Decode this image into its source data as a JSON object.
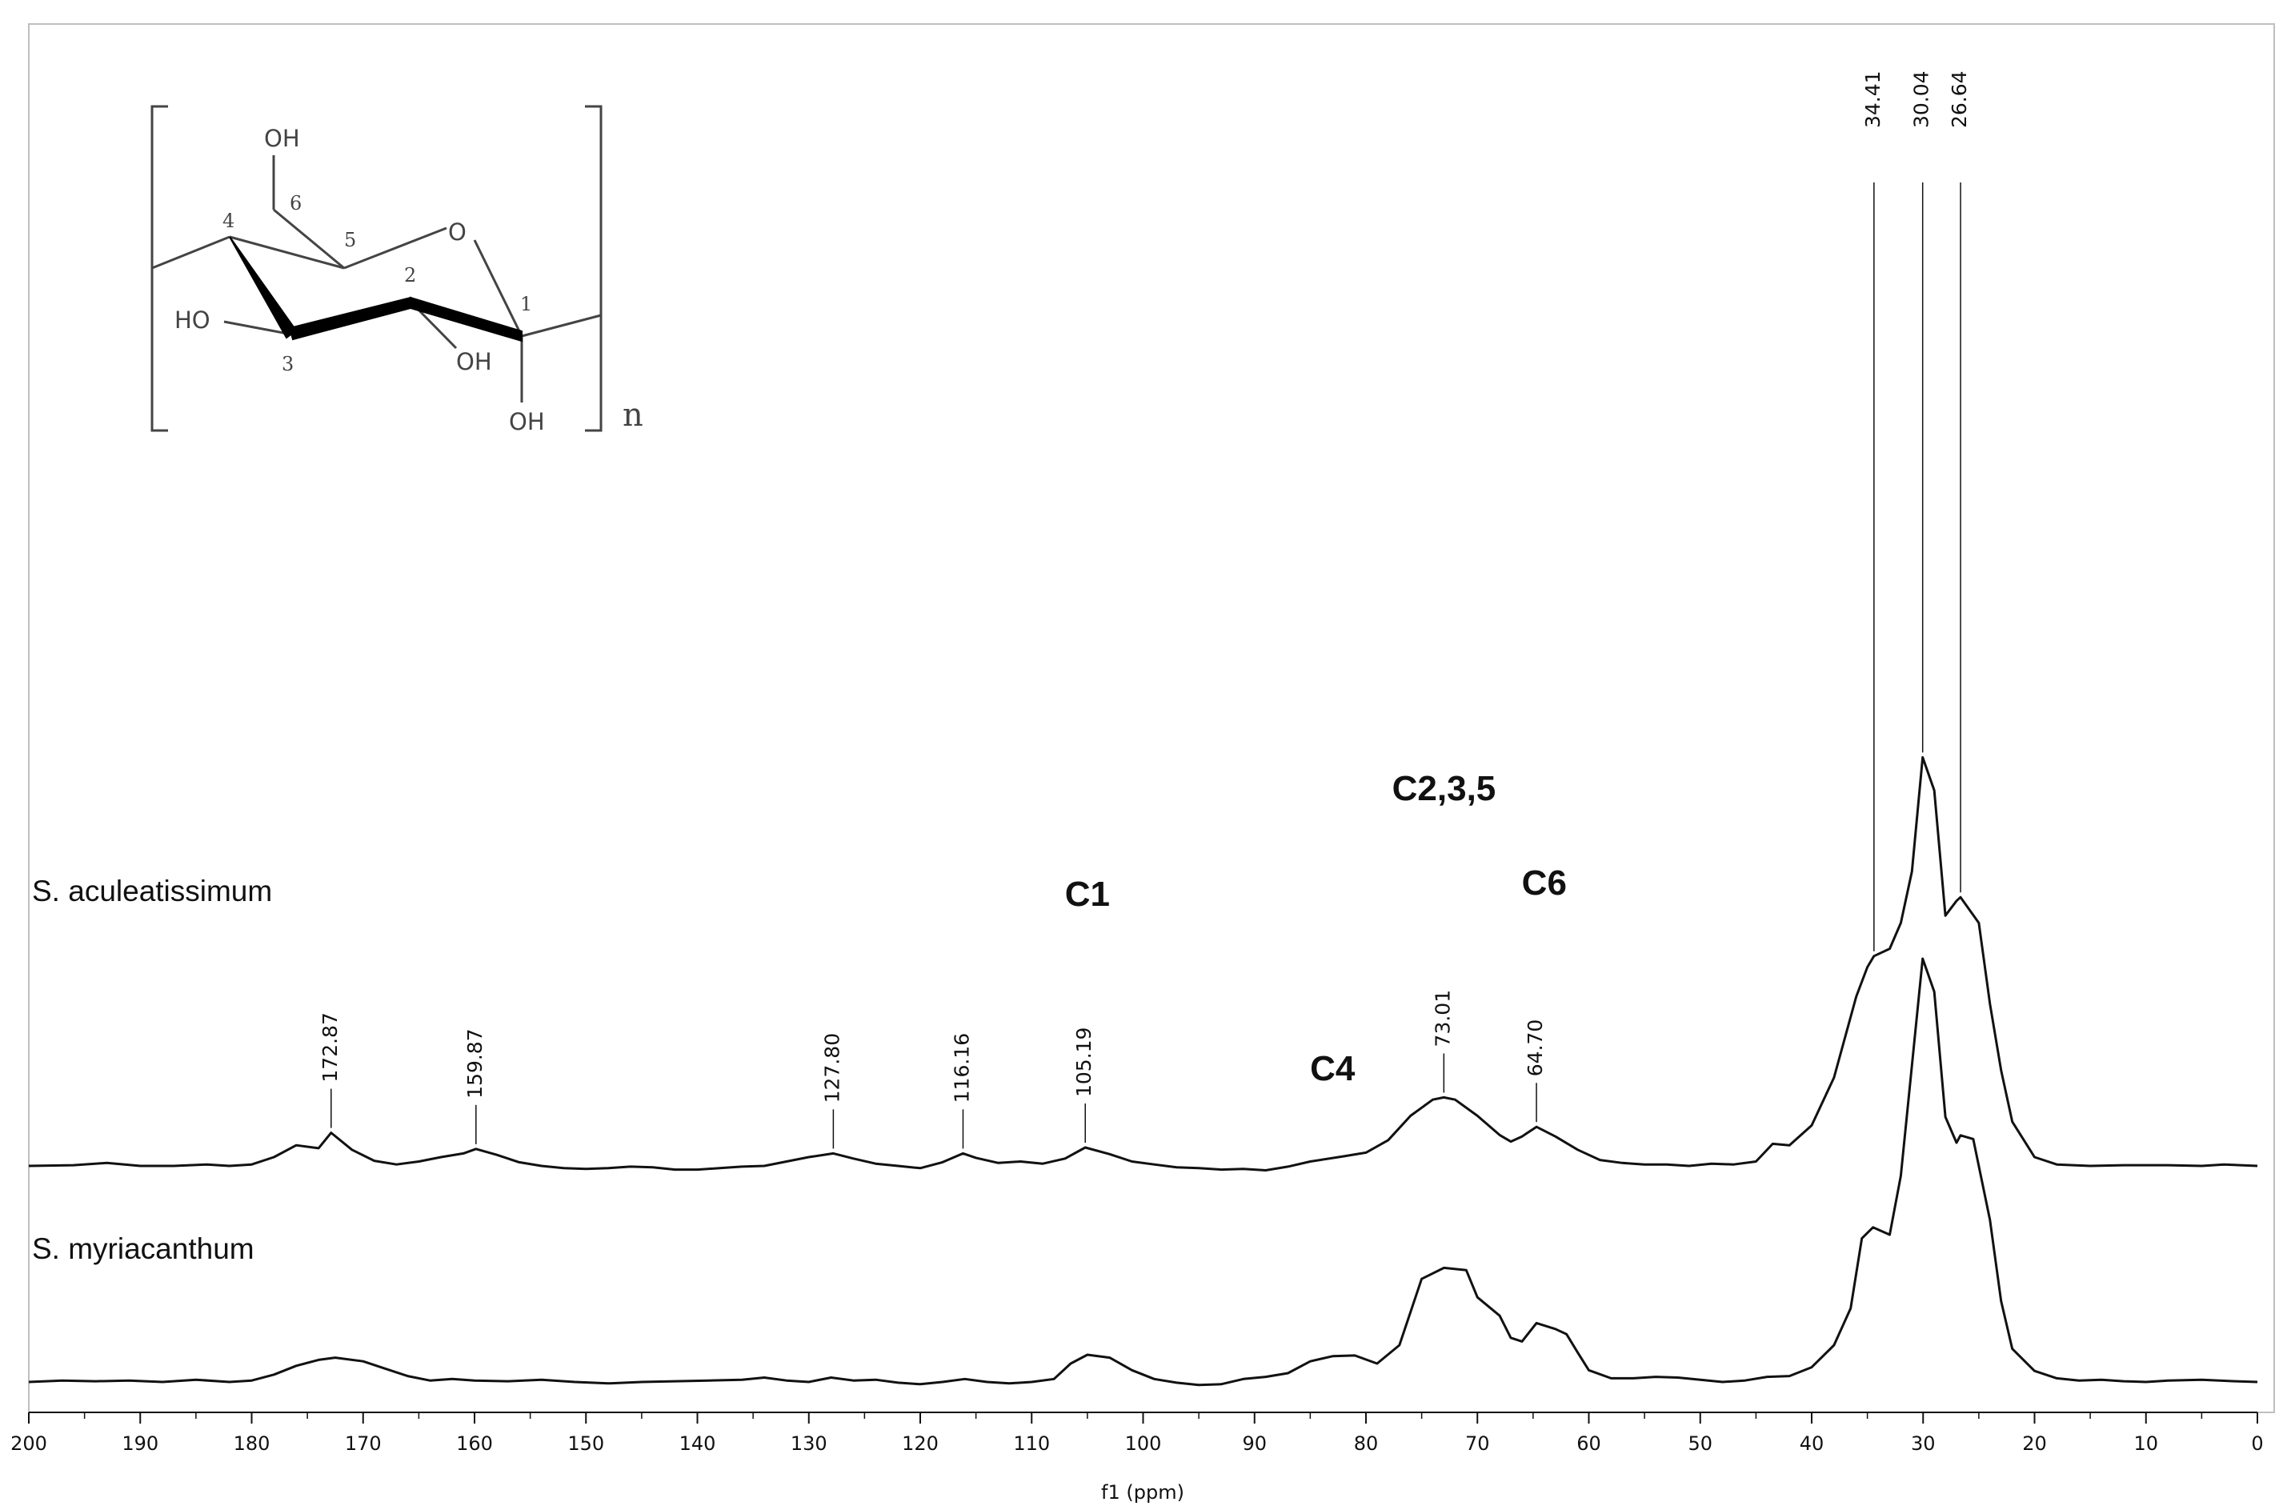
{
  "chart_data": {
    "type": "line",
    "title": "",
    "xlabel": "f1 (ppm)",
    "ylabel": "",
    "xlim": [
      200,
      0
    ],
    "x_axis_reversed": true,
    "grid": false,
    "legend": "none",
    "x_ticks": [
      "200",
      "190",
      "180",
      "170",
      "160",
      "150",
      "140",
      "130",
      "120",
      "110",
      "100",
      "90",
      "80",
      "70",
      "60",
      "50",
      "40",
      "30",
      "20",
      "10",
      "0"
    ],
    "series": [
      {
        "name": "S. aculeatissimum",
        "points": [
          [
            200,
            0.0
          ],
          [
            196,
            0.01
          ],
          [
            193,
            0.04
          ],
          [
            190,
            0.0
          ],
          [
            187,
            0.0
          ],
          [
            184,
            0.02
          ],
          [
            182,
            0.0
          ],
          [
            180,
            0.02
          ],
          [
            178,
            0.12
          ],
          [
            176,
            0.28
          ],
          [
            174,
            0.24
          ],
          [
            172.87,
            0.45
          ],
          [
            171,
            0.22
          ],
          [
            169,
            0.07
          ],
          [
            167,
            0.02
          ],
          [
            165,
            0.06
          ],
          [
            163,
            0.12
          ],
          [
            161,
            0.17
          ],
          [
            159.87,
            0.23
          ],
          [
            158,
            0.15
          ],
          [
            156,
            0.05
          ],
          [
            154,
            0.0
          ],
          [
            152,
            -0.03
          ],
          [
            150,
            -0.04
          ],
          [
            148,
            -0.03
          ],
          [
            146,
            -0.01
          ],
          [
            144,
            -0.02
          ],
          [
            142,
            -0.05
          ],
          [
            140,
            -0.05
          ],
          [
            138,
            -0.03
          ],
          [
            136,
            -0.01
          ],
          [
            134,
            0.0
          ],
          [
            132,
            0.06
          ],
          [
            130,
            0.12
          ],
          [
            127.8,
            0.17
          ],
          [
            126,
            0.1
          ],
          [
            124,
            0.03
          ],
          [
            122,
            0.0
          ],
          [
            120,
            -0.03
          ],
          [
            118,
            0.05
          ],
          [
            116.16,
            0.17
          ],
          [
            115,
            0.11
          ],
          [
            113,
            0.04
          ],
          [
            111,
            0.06
          ],
          [
            109,
            0.03
          ],
          [
            107,
            0.1
          ],
          [
            105.19,
            0.25
          ],
          [
            103,
            0.16
          ],
          [
            101,
            0.06
          ],
          [
            99,
            0.02
          ],
          [
            97,
            -0.02
          ],
          [
            95,
            -0.03
          ],
          [
            93,
            -0.05
          ],
          [
            91,
            -0.04
          ],
          [
            89,
            -0.06
          ],
          [
            87,
            -0.01
          ],
          [
            85,
            0.06
          ],
          [
            82,
            0.13
          ],
          [
            80,
            0.18
          ],
          [
            78,
            0.35
          ],
          [
            76,
            0.68
          ],
          [
            74,
            0.9
          ],
          [
            73.01,
            0.93
          ],
          [
            72,
            0.9
          ],
          [
            70,
            0.68
          ],
          [
            68,
            0.42
          ],
          [
            67,
            0.33
          ],
          [
            66,
            0.4
          ],
          [
            64.7,
            0.53
          ],
          [
            63,
            0.4
          ],
          [
            61,
            0.22
          ],
          [
            59,
            0.08
          ],
          [
            57,
            0.04
          ],
          [
            55,
            0.02
          ],
          [
            53,
            0.02
          ],
          [
            51,
            0.0
          ],
          [
            49,
            0.03
          ],
          [
            47,
            0.02
          ],
          [
            45,
            0.06
          ],
          [
            43.5,
            0.3
          ],
          [
            42,
            0.28
          ],
          [
            40,
            0.55
          ],
          [
            38,
            1.2
          ],
          [
            36,
            2.3
          ],
          [
            35,
            2.7
          ],
          [
            34.41,
            2.85
          ],
          [
            33,
            2.95
          ],
          [
            32,
            3.3
          ],
          [
            31,
            4.0
          ],
          [
            30.04,
            5.55
          ],
          [
            29,
            5.1
          ],
          [
            28,
            3.4
          ],
          [
            27,
            3.6
          ],
          [
            26.64,
            3.65
          ],
          [
            25,
            3.3
          ],
          [
            24,
            2.2
          ],
          [
            23,
            1.3
          ],
          [
            22,
            0.6
          ],
          [
            20,
            0.12
          ],
          [
            18,
            0.02
          ],
          [
            15,
            0.0
          ],
          [
            12,
            0.01
          ],
          [
            8,
            0.01
          ],
          [
            5,
            0.0
          ],
          [
            3,
            0.02
          ],
          [
            0,
            0.0
          ]
        ]
      },
      {
        "name": "S. myriacanthum",
        "points": [
          [
            200,
            0.0
          ],
          [
            197,
            0.02
          ],
          [
            194,
            0.01
          ],
          [
            191,
            0.02
          ],
          [
            188,
            0.0
          ],
          [
            185,
            0.03
          ],
          [
            182,
            0.0
          ],
          [
            180,
            0.02
          ],
          [
            178,
            0.1
          ],
          [
            176,
            0.22
          ],
          [
            174,
            0.3
          ],
          [
            172.5,
            0.33
          ],
          [
            170,
            0.28
          ],
          [
            168,
            0.18
          ],
          [
            166,
            0.08
          ],
          [
            164,
            0.02
          ],
          [
            162,
            0.04
          ],
          [
            160,
            0.02
          ],
          [
            157,
            0.01
          ],
          [
            154,
            0.03
          ],
          [
            151,
            0.0
          ],
          [
            148,
            -0.02
          ],
          [
            145,
            0.0
          ],
          [
            142,
            0.01
          ],
          [
            139,
            0.02
          ],
          [
            136,
            0.03
          ],
          [
            134,
            0.06
          ],
          [
            132,
            0.02
          ],
          [
            130,
            0.0
          ],
          [
            128,
            0.06
          ],
          [
            126,
            0.02
          ],
          [
            124,
            0.03
          ],
          [
            122,
            -0.01
          ],
          [
            120,
            -0.03
          ],
          [
            118,
            0.0
          ],
          [
            116,
            0.04
          ],
          [
            114,
            0.0
          ],
          [
            112,
            -0.02
          ],
          [
            110,
            0.0
          ],
          [
            108,
            0.04
          ],
          [
            106.5,
            0.25
          ],
          [
            105,
            0.37
          ],
          [
            103,
            0.33
          ],
          [
            101,
            0.16
          ],
          [
            99,
            0.04
          ],
          [
            97,
            -0.01
          ],
          [
            95,
            -0.04
          ],
          [
            93,
            -0.03
          ],
          [
            91,
            0.04
          ],
          [
            89,
            0.07
          ],
          [
            87,
            0.12
          ],
          [
            85,
            0.28
          ],
          [
            83,
            0.35
          ],
          [
            81,
            0.36
          ],
          [
            79,
            0.25
          ],
          [
            77,
            0.5
          ],
          [
            75,
            1.4
          ],
          [
            73,
            1.55
          ],
          [
            71,
            1.52
          ],
          [
            70,
            1.15
          ],
          [
            68,
            0.9
          ],
          [
            67,
            0.6
          ],
          [
            66,
            0.55
          ],
          [
            64.7,
            0.8
          ],
          [
            63,
            0.72
          ],
          [
            62,
            0.65
          ],
          [
            61,
            0.4
          ],
          [
            60,
            0.16
          ],
          [
            58,
            0.05
          ],
          [
            56,
            0.05
          ],
          [
            54,
            0.07
          ],
          [
            52,
            0.06
          ],
          [
            50,
            0.03
          ],
          [
            48,
            0.0
          ],
          [
            46,
            0.02
          ],
          [
            44,
            0.07
          ],
          [
            42,
            0.08
          ],
          [
            40,
            0.2
          ],
          [
            38,
            0.5
          ],
          [
            36.5,
            1.0
          ],
          [
            35.5,
            1.95
          ],
          [
            34.5,
            2.1
          ],
          [
            33,
            2.0
          ],
          [
            32,
            2.8
          ],
          [
            31,
            4.3
          ],
          [
            30.04,
            5.75
          ],
          [
            29,
            5.3
          ],
          [
            28,
            3.6
          ],
          [
            27,
            3.25
          ],
          [
            26.64,
            3.35
          ],
          [
            25.5,
            3.3
          ],
          [
            24,
            2.2
          ],
          [
            23,
            1.1
          ],
          [
            22,
            0.45
          ],
          [
            20,
            0.15
          ],
          [
            18,
            0.05
          ],
          [
            16,
            0.02
          ],
          [
            14,
            0.03
          ],
          [
            12,
            0.01
          ],
          [
            10,
            0.0
          ],
          [
            8,
            0.02
          ],
          [
            5,
            0.03
          ],
          [
            2,
            0.01
          ],
          [
            0,
            0.0
          ]
        ]
      }
    ],
    "peak_labels": [
      {
        "value": "172.87",
        "x": 172.87
      },
      {
        "value": "159.87",
        "x": 159.87
      },
      {
        "value": "127.80",
        "x": 127.8
      },
      {
        "value": "116.16",
        "x": 116.16
      },
      {
        "value": "105.19",
        "x": 105.19
      },
      {
        "value": "73.01",
        "x": 73.01
      },
      {
        "value": "64.70",
        "x": 64.7
      },
      {
        "value": "34.41",
        "x": 34.41
      },
      {
        "value": "30.04",
        "x": 30.04
      },
      {
        "value": "26.64",
        "x": 26.64
      }
    ],
    "annotations": [
      {
        "text": "C1",
        "x": 105
      },
      {
        "text": "C4",
        "x": 83
      },
      {
        "text": "C2,3,5",
        "x": 73
      },
      {
        "text": "C6",
        "x": 64
      }
    ]
  },
  "structure": {
    "hydroxyl_top": "OH",
    "hydroxyl_left": "HO",
    "hydroxyl_c2": "OH",
    "hydroxyl_c1": "OH",
    "ring_oxygen": "O",
    "repeat_subscript": "n",
    "carbon_numbers": [
      "1",
      "2",
      "3",
      "4",
      "5",
      "6"
    ]
  }
}
